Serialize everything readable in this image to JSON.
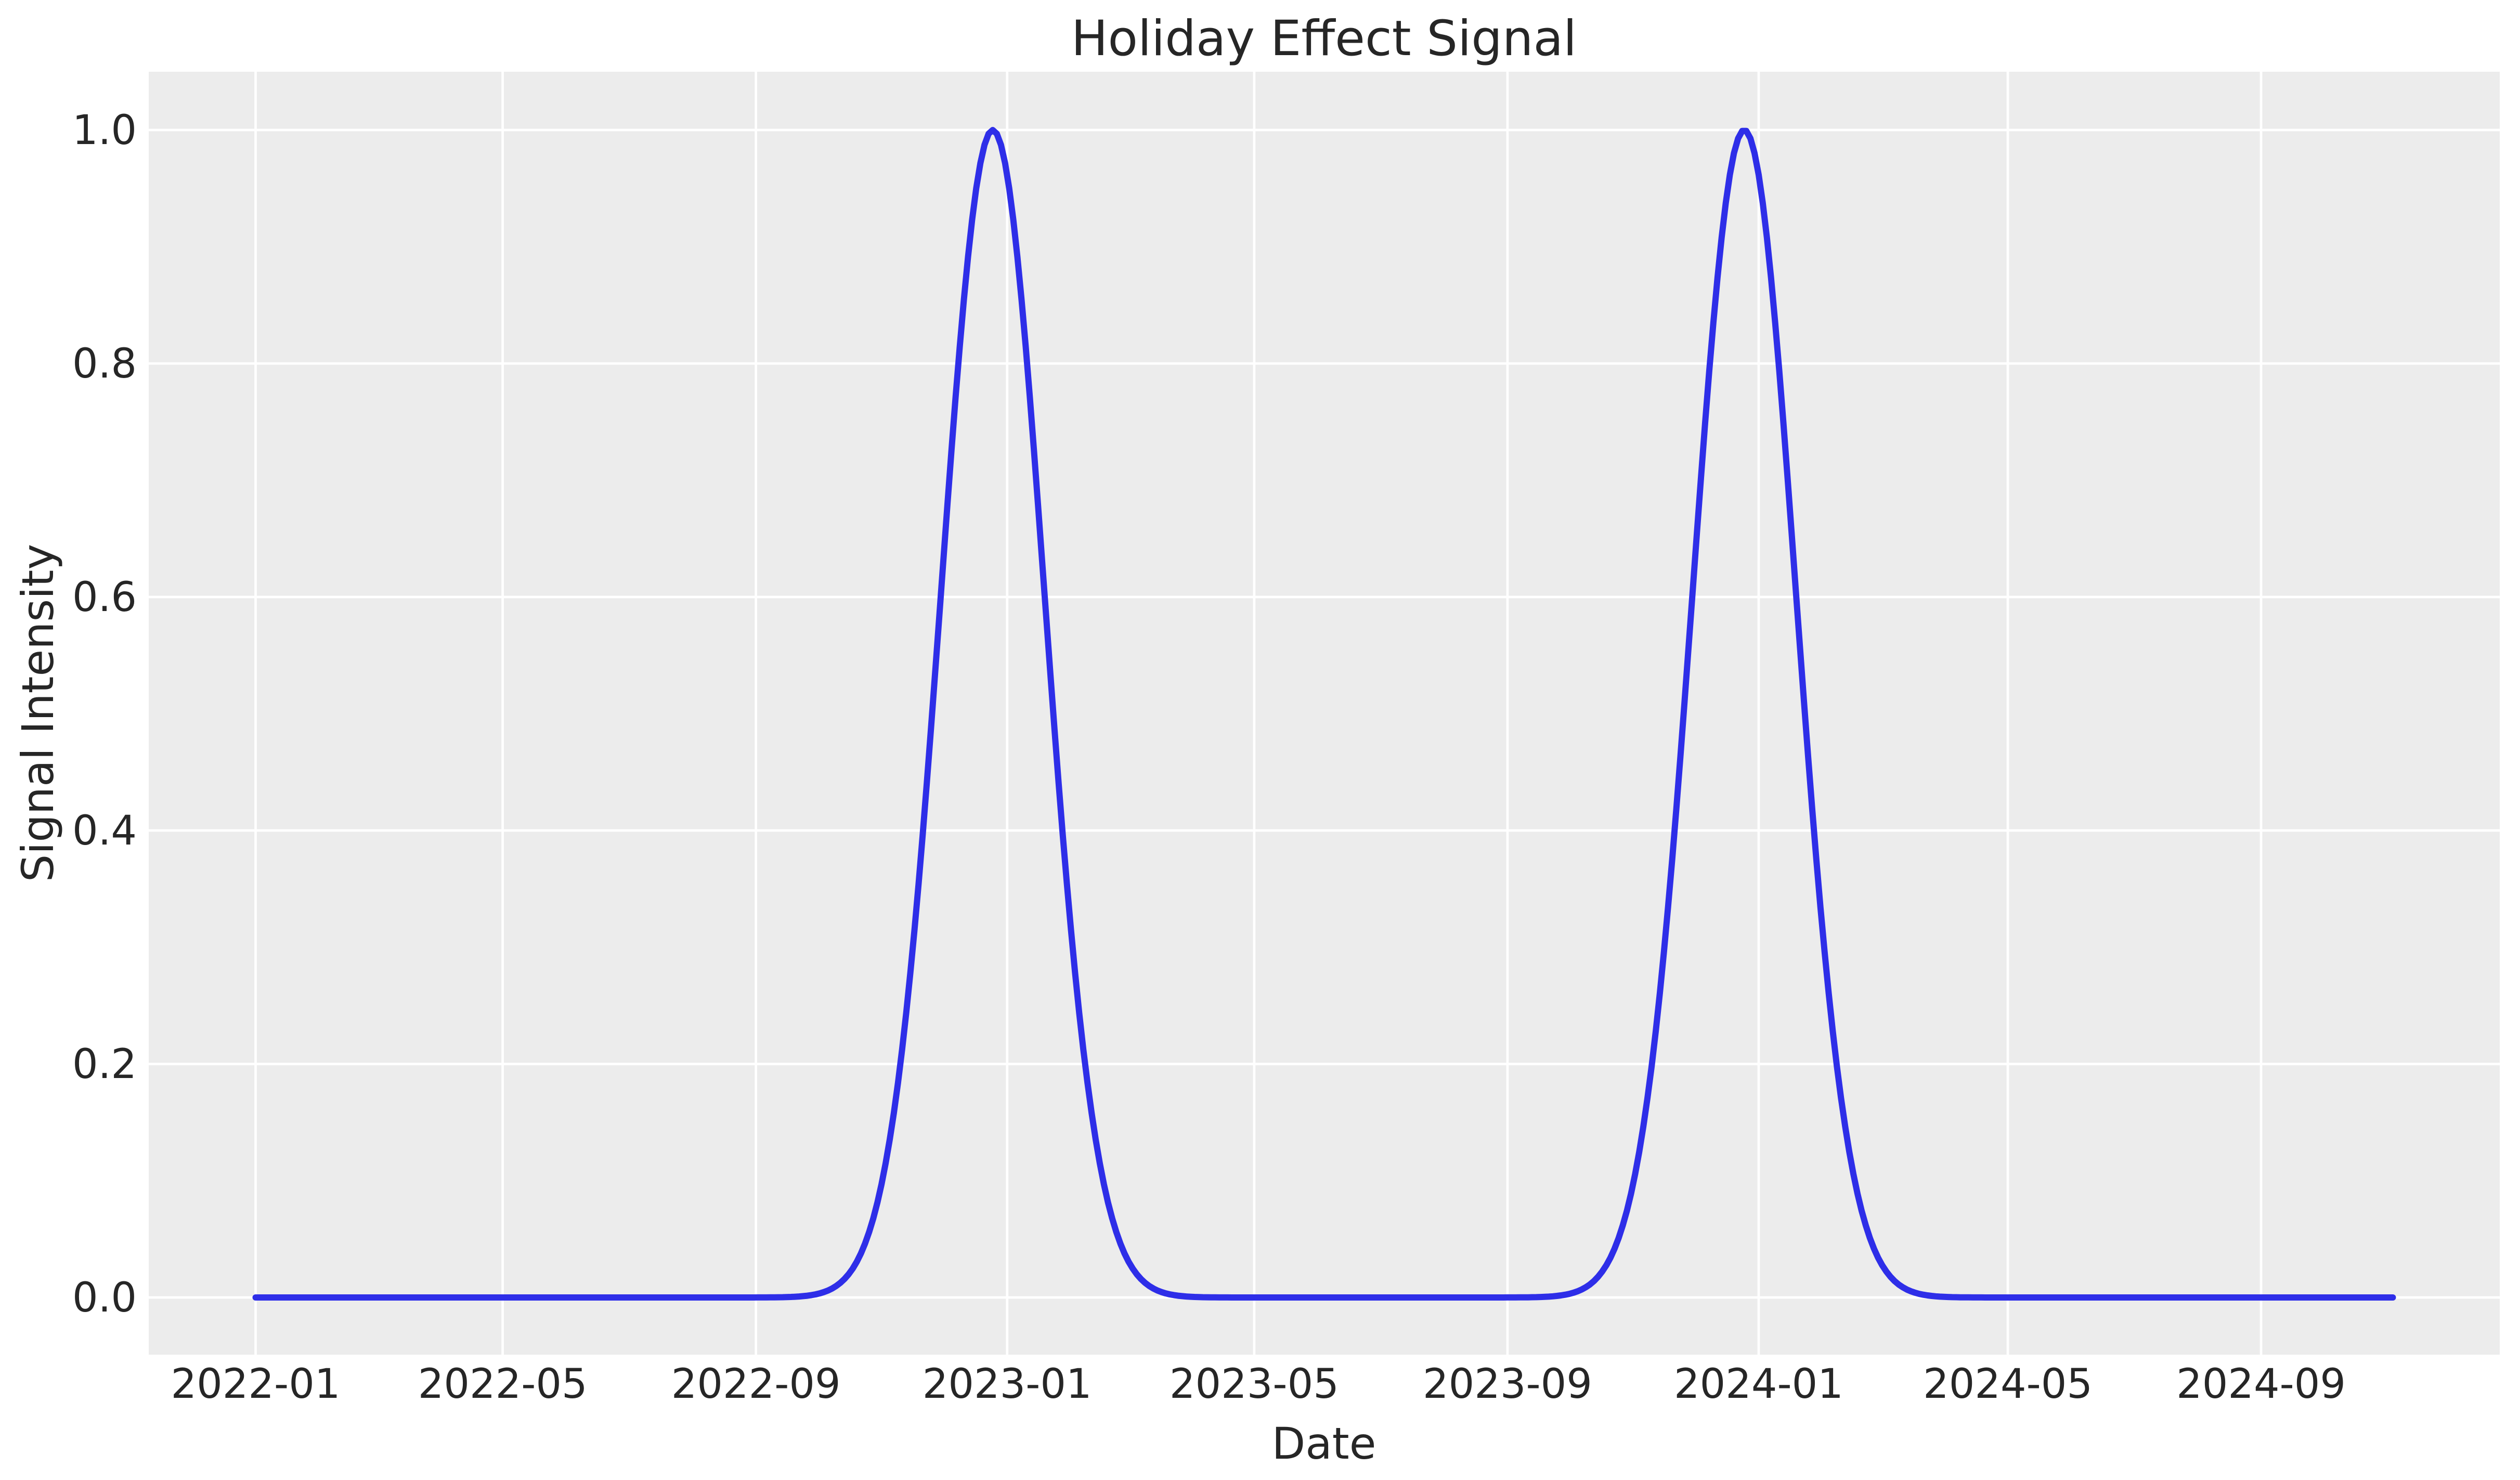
{
  "figure": {
    "background": "#ffffff",
    "axes_background": "#ececec",
    "grid_color": "#ffffff",
    "text_color": "#262626"
  },
  "chart_data": {
    "type": "line",
    "title": "Holiday Effect Signal",
    "xlabel": "Date",
    "ylabel": "Signal Intensity",
    "x_tick_labels": [
      "2022-01",
      "2022-05",
      "2022-09",
      "2023-01",
      "2023-05",
      "2023-09",
      "2024-01",
      "2024-05",
      "2024-09"
    ],
    "x_tick_dates": [
      "2022-01-01",
      "2022-05-01",
      "2022-09-01",
      "2023-01-01",
      "2023-05-01",
      "2023-09-01",
      "2024-01-01",
      "2024-05-01",
      "2024-09-01"
    ],
    "y_tick_labels": [
      "0.0",
      "0.2",
      "0.4",
      "0.6",
      "0.8",
      "1.0"
    ],
    "y_tick_values": [
      0.0,
      0.2,
      0.4,
      0.6,
      0.8,
      1.0
    ],
    "ylim_data": [
      0.0,
      1.0
    ],
    "x_margin_frac": 0.05,
    "y_margin_frac": 0.05,
    "grid": {
      "visible": true,
      "position": "under-line"
    },
    "series": [
      {
        "name": "holiday_signal",
        "color": "#2e2ee8",
        "model": "gaussian_bumps",
        "baseline": 0.0,
        "amplitude": 1.0,
        "peak_value": 1.0,
        "sigma_days": 25,
        "peaks": [
          "2022-12-25",
          "2023-12-25"
        ],
        "data_start": "2022-01-01",
        "data_end": "2024-11-04",
        "sample_step_days": 2,
        "key_points": [
          {
            "date": "2022-01-01",
            "value": 0.0
          },
          {
            "date": "2022-09-01",
            "value": 0.0
          },
          {
            "date": "2022-10-26",
            "value": 0.06
          },
          {
            "date": "2022-11-25",
            "value": 0.49
          },
          {
            "date": "2022-12-25",
            "value": 1.0
          },
          {
            "date": "2023-01-24",
            "value": 0.49
          },
          {
            "date": "2023-02-23",
            "value": 0.06
          },
          {
            "date": "2023-06-25",
            "value": 0.0
          },
          {
            "date": "2023-11-25",
            "value": 0.49
          },
          {
            "date": "2023-12-25",
            "value": 1.0
          },
          {
            "date": "2024-01-24",
            "value": 0.49
          },
          {
            "date": "2024-02-23",
            "value": 0.06
          },
          {
            "date": "2024-11-04",
            "value": 0.0
          }
        ]
      }
    ]
  }
}
